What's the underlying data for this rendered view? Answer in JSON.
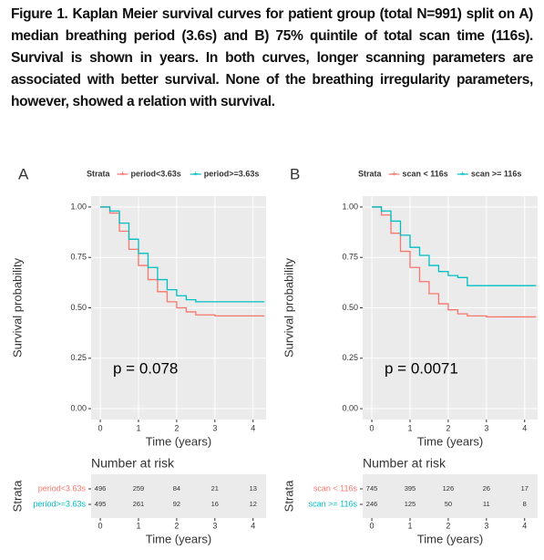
{
  "caption": "Figure 1. Kaplan Meier survival curves for patient group (total N=991) split on A) median breathing period (3.6s) and B) 75% quintile of total scan time (116s). Survival is shown in years. In both curves, longer scanning parameters are associated with better survival. None of the breathing irregularity parameters, however, showed a relation with survival.",
  "chart_data": [
    {
      "type": "line",
      "panel": "A",
      "legend_title": "Strata",
      "xlabel": "Time (years)",
      "ylabel": "Survival probability",
      "xlim": [
        -0.24,
        4.34
      ],
      "ylim": [
        -0.054,
        1.054
      ],
      "xticks": [
        0,
        1,
        2,
        3,
        4
      ],
      "yticks": [
        {
          "value": 0,
          "label": "0.00"
        },
        {
          "value": 0.25,
          "label": "0.25"
        },
        {
          "value": 0.5,
          "label": "0.50"
        },
        {
          "value": 0.75,
          "label": "0.75"
        },
        {
          "value": 1,
          "label": "1.00"
        }
      ],
      "grid": true,
      "step": true,
      "annotation": "p = 0.078",
      "x": [
        0,
        0.25,
        0.5,
        0.75,
        1,
        1.25,
        1.5,
        1.75,
        2,
        2.25,
        2.5,
        3,
        3.5,
        4,
        4.3
      ],
      "series": [
        {
          "name": "period<3.63s",
          "color": "#F8766D",
          "values": [
            1,
            0.97,
            0.88,
            0.79,
            0.71,
            0.64,
            0.58,
            0.53,
            0.5,
            0.48,
            0.465,
            0.46,
            0.46,
            0.46,
            0.46
          ]
        },
        {
          "name": "period>=3.63s",
          "color": "#00BFC4",
          "values": [
            1,
            0.98,
            0.92,
            0.84,
            0.77,
            0.7,
            0.64,
            0.59,
            0.56,
            0.54,
            0.53,
            0.53,
            0.53,
            0.53,
            0.53
          ]
        }
      ],
      "risk_table": {
        "title": "Number at risk",
        "ylabel": "Strata",
        "rows": [
          [
            496,
            259,
            84,
            21,
            13
          ],
          [
            495,
            261,
            92,
            16,
            12
          ]
        ]
      }
    },
    {
      "type": "line",
      "panel": "B",
      "legend_title": "Strata",
      "xlabel": "Time (years)",
      "ylabel": "Survival probability",
      "xlim": [
        -0.24,
        4.34
      ],
      "ylim": [
        -0.054,
        1.054
      ],
      "xticks": [
        0,
        1,
        2,
        3,
        4
      ],
      "yticks": [
        {
          "value": 0,
          "label": "0.00"
        },
        {
          "value": 0.25,
          "label": "0.25"
        },
        {
          "value": 0.5,
          "label": "0.50"
        },
        {
          "value": 0.75,
          "label": "0.75"
        },
        {
          "value": 1,
          "label": "1.00"
        }
      ],
      "grid": true,
      "step": true,
      "annotation": "p = 0.0071",
      "x": [
        0,
        0.25,
        0.5,
        0.75,
        1,
        1.25,
        1.5,
        1.75,
        2,
        2.25,
        2.5,
        3,
        3.5,
        4,
        4.3
      ],
      "series": [
        {
          "name": "scan < 116s",
          "color": "#F8766D",
          "values": [
            1,
            0.96,
            0.87,
            0.78,
            0.7,
            0.63,
            0.57,
            0.52,
            0.49,
            0.47,
            0.46,
            0.455,
            0.455,
            0.455,
            0.455
          ]
        },
        {
          "name": "scan >= 116s",
          "color": "#00BFC4",
          "values": [
            1,
            0.98,
            0.93,
            0.86,
            0.8,
            0.76,
            0.71,
            0.68,
            0.66,
            0.65,
            0.61,
            0.61,
            0.61,
            0.61,
            0.61
          ]
        }
      ],
      "risk_table": {
        "title": "Number at risk",
        "ylabel": "Strata",
        "rows": [
          [
            745,
            395,
            126,
            26,
            17
          ],
          [
            246,
            125,
            50,
            11,
            8
          ]
        ]
      }
    }
  ]
}
